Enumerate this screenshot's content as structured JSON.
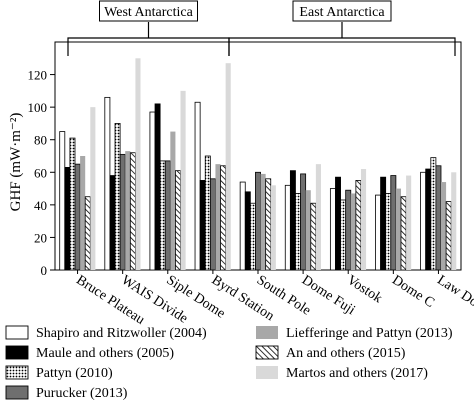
{
  "chart_data": {
    "type": "bar",
    "title": "",
    "xlabel": "",
    "ylabel": "GHF (mW·m⁻²)",
    "ylim": [
      0,
      140
    ],
    "yticks": [
      "0",
      "20",
      "40",
      "60",
      "80",
      "100",
      "120"
    ],
    "grid": false,
    "legend_position": "bottom",
    "groups": [
      {
        "label": "West Antarctica",
        "first": 0,
        "last": 3
      },
      {
        "label": "East Antarctica",
        "first": 4,
        "last": 8
      }
    ],
    "categories": [
      "Bruce Plateau",
      "WAIS Divide",
      "Siple Dome",
      "Byrd Station",
      "South Pole",
      "Dome Fuji",
      "Vostok",
      "Dome C",
      "Law Dome"
    ],
    "series": [
      {
        "name": "Shapiro and Ritzwoller (2004)",
        "style": "white",
        "values": [
          85,
          106,
          97,
          103,
          54,
          52,
          50,
          46,
          60
        ]
      },
      {
        "name": "Maule and others (2005)",
        "style": "black",
        "values": [
          63,
          58,
          102,
          55,
          48,
          61,
          57,
          57,
          62
        ]
      },
      {
        "name": "Pattyn (2010)",
        "style": "dotted",
        "values": [
          81,
          90,
          67,
          70,
          41,
          47,
          43,
          47,
          69
        ]
      },
      {
        "name": "Purucker (2013)",
        "style": "darkgray",
        "values": [
          65,
          71,
          67,
          56,
          60,
          59,
          49,
          58,
          64
        ]
      },
      {
        "name": "Liefferinge and Pattyn (2013)",
        "style": "midgray",
        "values": [
          70,
          73,
          85,
          65,
          59,
          49,
          47,
          50,
          54
        ]
      },
      {
        "name": "An and others (2015)",
        "style": "hatched",
        "values": [
          45,
          72,
          61,
          64,
          56,
          41,
          55,
          45,
          42
        ]
      },
      {
        "name": "Martos and others (2017)",
        "style": "lightgray",
        "values": [
          100,
          130,
          110,
          127,
          52,
          65,
          62,
          58,
          60
        ]
      }
    ],
    "colors": {
      "white": "#ffffff",
      "black": "#000000",
      "darkgray": "#6f6f6f",
      "midgray": "#a8a8a8",
      "lightgray": "#d9d9d9",
      "outline": "#000000"
    }
  }
}
